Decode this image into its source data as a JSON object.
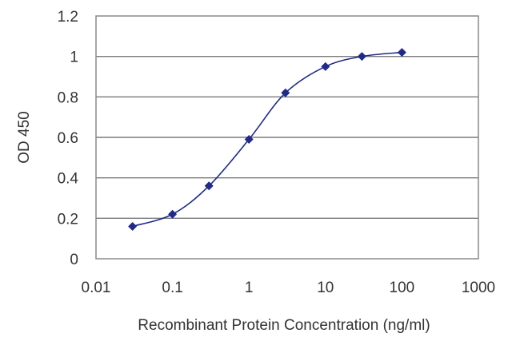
{
  "chart_data": {
    "type": "line",
    "title": "",
    "xlabel": "Recombinant Protein Concentration (ng/ml)",
    "ylabel": "OD 450",
    "x_scale": "log",
    "xlim": [
      0.01,
      1000
    ],
    "ylim": [
      0,
      1.2
    ],
    "grid": "horizontal",
    "x_ticks": [
      "0.01",
      "0.1",
      "1",
      "10",
      "100",
      "1000"
    ],
    "y_ticks": [
      "0",
      "0.2",
      "0.4",
      "0.6",
      "0.8",
      "1",
      "1.2"
    ],
    "series": [
      {
        "x": [
          0.03,
          0.1,
          0.3,
          1,
          3,
          10,
          30,
          100
        ],
        "y": [
          0.16,
          0.22,
          0.36,
          0.59,
          0.82,
          0.95,
          1.0,
          1.02
        ]
      }
    ],
    "colors": {
      "series": "#1f2a8a",
      "grid": "#7a7a7a",
      "frame": "#8a8a8a"
    }
  }
}
